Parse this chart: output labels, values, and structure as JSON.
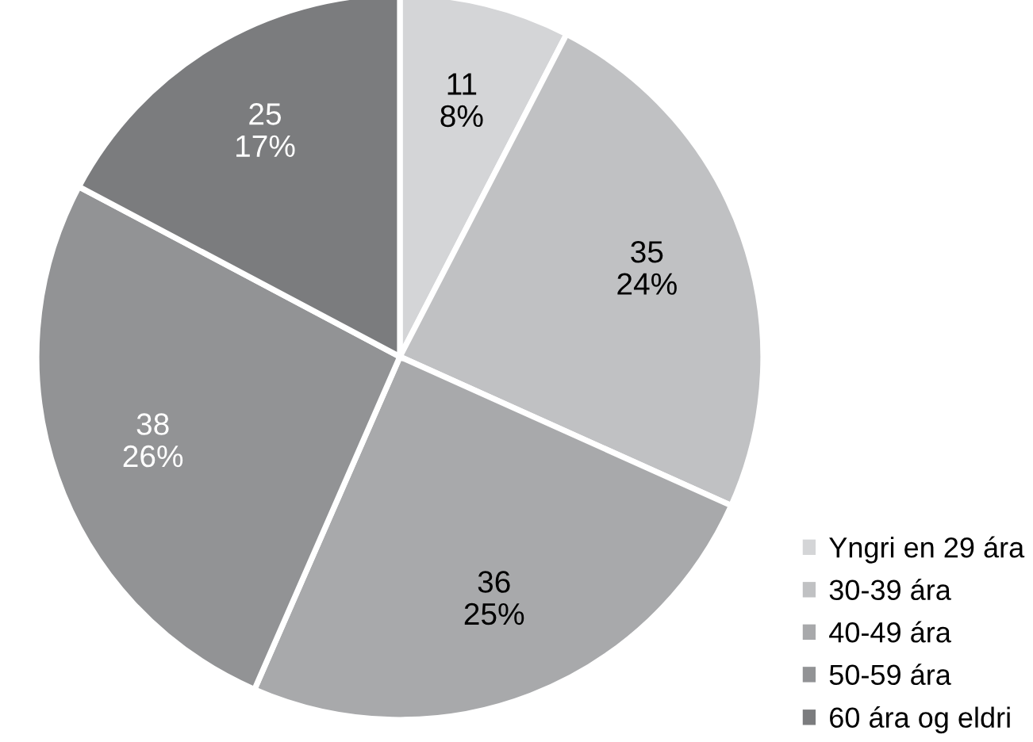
{
  "chart_data": {
    "type": "pie",
    "categories": [
      "Yngri en 29 ára",
      "30-39 ára",
      "40-49 ára",
      "50-59 ára",
      "60 ára og eldri"
    ],
    "values": [
      11,
      35,
      36,
      38,
      25
    ],
    "value_labels": [
      "11\n8%",
      "35\n24%",
      "36\n25%",
      "38\n26%",
      "25\n17%"
    ],
    "colors": [
      "#d4d5d7",
      "#c0c1c3",
      "#a8a9ab",
      "#929395",
      "#7b7c7e"
    ],
    "legend": "bottom right"
  }
}
